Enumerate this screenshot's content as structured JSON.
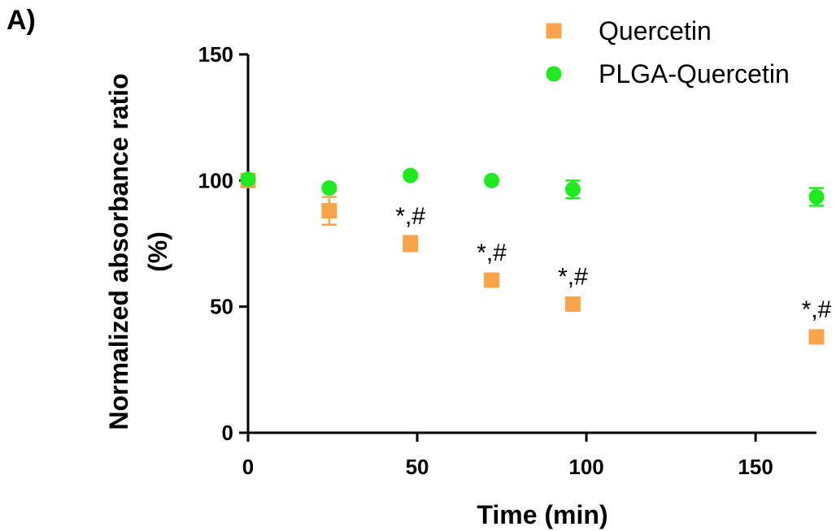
{
  "panel_label": "A)",
  "colors": {
    "quercetin": "#F9A34A",
    "plga_quercetin": "#1FEA1F",
    "axis": "#000000"
  },
  "chart_data": {
    "type": "scatter",
    "xlabel": "Time (min)",
    "ylabel_lines": [
      "Normalized absorbance ratio",
      "(%)"
    ],
    "xlim": [
      0,
      168
    ],
    "ylim": [
      0,
      150
    ],
    "xticks": [
      0,
      50,
      100,
      150
    ],
    "yticks": [
      0,
      50,
      100,
      150
    ],
    "grid": false,
    "legend": "top-right",
    "series": [
      {
        "name": "Quercetin",
        "marker": "square",
        "color": "#F9A34A",
        "points": [
          {
            "x": 0,
            "y": 100,
            "err": 0.8
          },
          {
            "x": 24,
            "y": 88,
            "err": 5.5
          },
          {
            "x": 48,
            "y": 75,
            "err": 3
          },
          {
            "x": 72,
            "y": 60.5,
            "err": 1.5
          },
          {
            "x": 96,
            "y": 51,
            "err": 2
          },
          {
            "x": 168,
            "y": 38,
            "err": 1
          }
        ]
      },
      {
        "name": "PLGA-Quercetin",
        "marker": "circle",
        "color": "#1FEA1F",
        "points": [
          {
            "x": 0,
            "y": 100.5,
            "err": 0.5
          },
          {
            "x": 24,
            "y": 97,
            "err": 1
          },
          {
            "x": 48,
            "y": 102,
            "err": 1
          },
          {
            "x": 72,
            "y": 100,
            "err": 0.8
          },
          {
            "x": 96,
            "y": 96.5,
            "err": 3.5
          },
          {
            "x": 168,
            "y": 93.5,
            "err": 3.5
          }
        ]
      }
    ],
    "annotations": [
      {
        "x": 48,
        "y": 75,
        "text": "*,#"
      },
      {
        "x": 72,
        "y": 60.5,
        "text": "*,#"
      },
      {
        "x": 96,
        "y": 51,
        "text": "*,#"
      },
      {
        "x": 168,
        "y": 38,
        "text": "*,#"
      }
    ]
  }
}
